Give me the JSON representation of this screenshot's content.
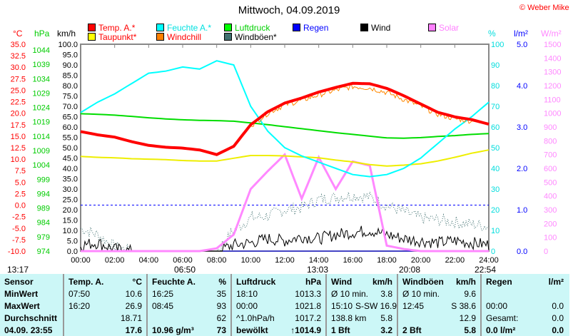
{
  "title": "Mittwoch, 04.09.2019",
  "copyright": "© Weber Mike",
  "legend": [
    {
      "label": "Temp. A.*",
      "color": "#ff0000",
      "text": "#ff0000"
    },
    {
      "label": "Feuchte A.*",
      "color": "#00ffff",
      "text": "#00e0e0"
    },
    {
      "label": "Luftdruck",
      "color": "#00ff00",
      "text": "#00d000"
    },
    {
      "label": "Regen",
      "color": "#0000ff",
      "text": "#0000ff"
    },
    {
      "label": "Wind",
      "color": "#000000",
      "text": "#000000"
    },
    {
      "label": "Solar",
      "color": "#ff80ff",
      "text": "#ff80ff"
    },
    {
      "label": "Taupunkt*",
      "color": "#ffff00",
      "text": "#ff0000"
    },
    {
      "label": "Windchill",
      "color": "#ff8000",
      "text": "#ff0000"
    },
    {
      "label": "Windböen*",
      "color": "#407070",
      "text": "#000000"
    }
  ],
  "units": {
    "c": "°C",
    "hpa": "hPa",
    "kmh": "km/h",
    "pct": "%",
    "lm2": "l/m²",
    "wm2": "W/m²"
  },
  "sun": {
    "sunrise_label": "06:50",
    "sunset_label": "20:08",
    "moonset_label": "13:17",
    "moon1": "13:03",
    "moon2": "22:54"
  },
  "chart_data": {
    "type": "line",
    "title": "Mittwoch, 04.09.2019",
    "x_ticks": [
      "00:00",
      "02:00",
      "04:00",
      "06:00",
      "08:00",
      "10:00",
      "12:00",
      "14:00",
      "16:00",
      "18:00",
      "20:00",
      "22:00",
      "24:00"
    ],
    "axes": {
      "c": [
        -10,
        35
      ],
      "hpa": [
        974,
        1044
      ],
      "kmh": [
        0,
        100
      ],
      "pct": [
        0,
        100
      ],
      "lm2": [
        0,
        5
      ],
      "wm2": [
        0,
        1500
      ]
    },
    "x_hours": [
      0,
      1,
      2,
      3,
      4,
      5,
      6,
      7,
      8,
      9,
      10,
      11,
      12,
      13,
      14,
      15,
      16,
      17,
      18,
      19,
      20,
      21,
      22,
      23,
      24
    ],
    "series": [
      {
        "name": "Temp. A.",
        "axis": "c",
        "values": [
          16,
          15.3,
          14.8,
          13.8,
          13,
          12.6,
          12.4,
          12,
          11,
          12.8,
          17.5,
          20.3,
          22.2,
          23.3,
          24.6,
          25.6,
          26.5,
          26.4,
          25.4,
          23.8,
          22,
          20.2,
          19.2,
          18.6,
          17.6
        ]
      },
      {
        "name": "Feuchte A.",
        "axis": "pct",
        "values": [
          67,
          72,
          76,
          81,
          86,
          87,
          89,
          88,
          92,
          90,
          70,
          58,
          50,
          46,
          43,
          40,
          37,
          36,
          37,
          40,
          45,
          52,
          59,
          65,
          72
        ]
      },
      {
        "name": "Luftdruck",
        "axis": "hpa",
        "values": [
          1021.8,
          1021.6,
          1021.3,
          1020.9,
          1020.4,
          1020.0,
          1019.7,
          1019.5,
          1019.4,
          1019.2,
          1018.6,
          1018.0,
          1017.3,
          1016.6,
          1015.9,
          1015.2,
          1014.6,
          1014.0,
          1013.4,
          1013.3,
          1013.5,
          1013.9,
          1014.2,
          1014.6,
          1014.9
        ]
      },
      {
        "name": "Taupunkt",
        "axis": "c",
        "values": [
          10.6,
          10.4,
          10.3,
          10.1,
          10.0,
          9.9,
          9.7,
          9.6,
          9.6,
          10.2,
          10.8,
          10.8,
          10.7,
          10.5,
          10.3,
          9.8,
          9.4,
          8.8,
          8.5,
          8.7,
          9.0,
          9.6,
          10.4,
          11.3,
          12.0
        ]
      },
      {
        "name": "Windchill",
        "axis": "c",
        "values": [
          16,
          15.3,
          14.8,
          13.8,
          13,
          12.6,
          12.4,
          12,
          11,
          12.8,
          17.3,
          20,
          21.8,
          22.8,
          24,
          25,
          25.8,
          25.5,
          24.5,
          23,
          21.5,
          19.8,
          18.8,
          18.3,
          17.6
        ]
      },
      {
        "name": "Solar",
        "axis": "wm2",
        "values": [
          0,
          0,
          0,
          0,
          0,
          0,
          0,
          0,
          20,
          120,
          450,
          580,
          700,
          380,
          680,
          450,
          650,
          620,
          40,
          15,
          0,
          0,
          0,
          0,
          0
        ]
      },
      {
        "name": "Wind",
        "axis": "kmh",
        "values": [
          3,
          4,
          1,
          0,
          0,
          0,
          0,
          0,
          0,
          3,
          4,
          6,
          5,
          7,
          6,
          8,
          9,
          10,
          8,
          6,
          5,
          4,
          5,
          4,
          3
        ]
      },
      {
        "name": "Windböen",
        "axis": "kmh",
        "values": [
          11,
          8,
          2,
          0,
          0,
          0,
          0,
          0,
          0,
          10,
          16,
          17,
          20,
          21,
          25,
          26,
          27,
          26,
          22,
          19,
          16,
          15,
          14,
          13,
          12
        ]
      },
      {
        "name": "Regen",
        "axis": "lm2",
        "values": [
          0,
          0,
          0,
          0,
          0,
          0,
          0,
          0,
          0,
          0,
          0,
          0,
          0,
          0,
          0,
          0,
          0,
          0,
          0,
          0,
          0,
          0,
          0,
          0,
          0
        ]
      }
    ]
  },
  "table": {
    "headers": [
      [
        "Sensor",
        ""
      ],
      [
        "Temp. A.",
        "°C"
      ],
      [
        "Feuchte A.",
        "%"
      ],
      [
        "Luftdruck",
        "hPa"
      ],
      [
        "Wind",
        "km/h"
      ],
      [
        "Windböen",
        "km/h"
      ],
      [
        "Regen",
        "l/m²"
      ]
    ],
    "rows": [
      {
        "label": "MinWert",
        "cells": [
          [
            "07:50",
            "10.6"
          ],
          [
            "16:25",
            "35"
          ],
          [
            "18:10",
            "1013.3"
          ],
          [
            "Ø 10 min.",
            "3.8"
          ],
          [
            "Ø 10 min.",
            "9.6"
          ],
          [
            "",
            ""
          ]
        ]
      },
      {
        "label": "MaxWert",
        "cells": [
          [
            "16:20",
            "26.9"
          ],
          [
            "08:45",
            "93"
          ],
          [
            "00:00",
            "1021.8"
          ],
          [
            "15:10",
            "S-SW 16.9"
          ],
          [
            "12:45",
            "S 38.6"
          ],
          [
            "00:00",
            "0.0"
          ]
        ]
      },
      {
        "label": "Durchschnitt",
        "cells": [
          [
            "",
            "18.71"
          ],
          [
            "",
            "62"
          ],
          [
            "^1.0hPa/h",
            "1017.2"
          ],
          [
            "138.8 km",
            "5.8"
          ],
          [
            "",
            "12.9"
          ],
          [
            "Gesamt:",
            "0.0"
          ]
        ]
      },
      {
        "label": "04.09. 23:55",
        "cells": [
          [
            "",
            "17.6"
          ],
          [
            "10.96 g/m³",
            "73"
          ],
          [
            "bewölkt",
            "↑1014.9"
          ],
          [
            "1 Bft",
            "3.2"
          ],
          [
            "2 Bft",
            "5.8"
          ],
          [
            "0.0 l/m²",
            "0.0"
          ]
        ]
      }
    ]
  }
}
